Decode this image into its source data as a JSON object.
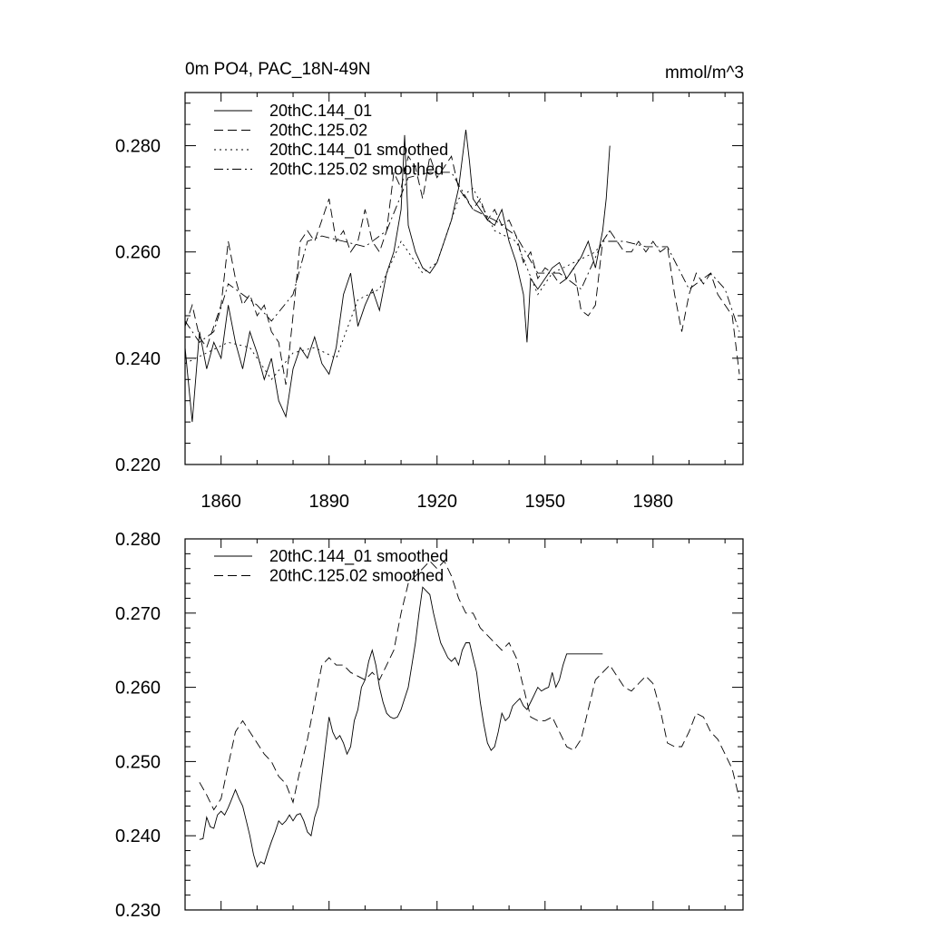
{
  "figure": {
    "title_left": "0m PO4, PAC_18N-49N",
    "title_right": "mmol/m^3"
  },
  "chart_data": [
    {
      "type": "line",
      "xlim": [
        1850,
        2005
      ],
      "ylim": [
        0.22,
        0.29
      ],
      "x_ticks": [
        1860,
        1890,
        1920,
        1950,
        1980
      ],
      "x_tick_labels": [
        "1860",
        "1890",
        "1920",
        "1950",
        "1980"
      ],
      "y_ticks": [
        0.22,
        0.24,
        0.26,
        0.28
      ],
      "y_tick_labels": [
        "0.220",
        "0.240",
        "0.260",
        "0.280"
      ],
      "legend_position": "top-left",
      "series": [
        {
          "name": "20thC.144_01",
          "style": "solid",
          "x": [
            1850,
            1852,
            1854,
            1856,
            1858,
            1860,
            1862,
            1864,
            1866,
            1868,
            1870,
            1872,
            1874,
            1876,
            1878,
            1880,
            1882,
            1884,
            1886,
            1888,
            1890,
            1892,
            1894,
            1896,
            1898,
            1900,
            1902,
            1904,
            1906,
            1908,
            1910,
            1911,
            1912,
            1914,
            1916,
            1918,
            1920,
            1922,
            1924,
            1926,
            1928,
            1929,
            1930,
            1932,
            1934,
            1936,
            1938,
            1940,
            1942,
            1944,
            1945,
            1946,
            1948,
            1950,
            1952,
            1954,
            1956,
            1958,
            1960,
            1962,
            1964,
            1966,
            1967,
            1968
          ],
          "y": [
            0.242,
            0.228,
            0.245,
            0.238,
            0.243,
            0.24,
            0.25,
            0.243,
            0.238,
            0.245,
            0.241,
            0.236,
            0.24,
            0.232,
            0.229,
            0.238,
            0.242,
            0.24,
            0.244,
            0.239,
            0.237,
            0.242,
            0.252,
            0.256,
            0.246,
            0.25,
            0.253,
            0.249,
            0.256,
            0.26,
            0.268,
            0.282,
            0.265,
            0.26,
            0.257,
            0.256,
            0.258,
            0.262,
            0.266,
            0.272,
            0.283,
            0.277,
            0.27,
            0.268,
            0.266,
            0.265,
            0.268,
            0.262,
            0.258,
            0.252,
            0.243,
            0.255,
            0.253,
            0.255,
            0.257,
            0.258,
            0.255,
            0.257,
            0.259,
            0.262,
            0.257,
            0.264,
            0.27,
            0.28
          ]
        },
        {
          "name": "20thC.125.02",
          "style": "dashed",
          "x": [
            1850,
            1852,
            1854,
            1856,
            1858,
            1860,
            1862,
            1864,
            1866,
            1868,
            1870,
            1872,
            1874,
            1876,
            1878,
            1880,
            1882,
            1884,
            1886,
            1888,
            1890,
            1892,
            1894,
            1896,
            1898,
            1900,
            1902,
            1904,
            1906,
            1908,
            1910,
            1912,
            1914,
            1916,
            1918,
            1920,
            1922,
            1924,
            1926,
            1928,
            1930,
            1932,
            1934,
            1936,
            1938,
            1940,
            1942,
            1944,
            1946,
            1948,
            1950,
            1952,
            1954,
            1956,
            1958,
            1960,
            1962,
            1964,
            1966,
            1968,
            1970,
            1972,
            1974,
            1976,
            1978,
            1980,
            1982,
            1984,
            1986,
            1988,
            1990,
            1992,
            1994,
            1996,
            1998,
            2000,
            2002,
            2004
          ],
          "y": [
            0.246,
            0.25,
            0.244,
            0.242,
            0.246,
            0.25,
            0.262,
            0.255,
            0.25,
            0.252,
            0.248,
            0.25,
            0.245,
            0.243,
            0.235,
            0.248,
            0.262,
            0.264,
            0.262,
            0.266,
            0.27,
            0.262,
            0.264,
            0.26,
            0.262,
            0.268,
            0.262,
            0.26,
            0.264,
            0.275,
            0.272,
            0.278,
            0.276,
            0.27,
            0.278,
            0.274,
            0.276,
            0.278,
            0.272,
            0.27,
            0.268,
            0.27,
            0.266,
            0.268,
            0.265,
            0.266,
            0.263,
            0.258,
            0.26,
            0.255,
            0.257,
            0.256,
            0.254,
            0.255,
            0.257,
            0.249,
            0.248,
            0.25,
            0.262,
            0.264,
            0.262,
            0.26,
            0.26,
            0.262,
            0.26,
            0.262,
            0.26,
            0.261,
            0.252,
            0.245,
            0.252,
            0.256,
            0.254,
            0.256,
            0.252,
            0.25,
            0.248,
            0.237
          ]
        },
        {
          "name": "20thC.144_01 smoothed",
          "style": "dotted",
          "x": [
            1850,
            1856,
            1862,
            1868,
            1874,
            1880,
            1886,
            1892,
            1898,
            1904,
            1910,
            1916,
            1920,
            1926,
            1930,
            1936,
            1942,
            1948,
            1952,
            1958,
            1964,
            1968
          ],
          "y": [
            0.239,
            0.241,
            0.243,
            0.242,
            0.236,
            0.241,
            0.242,
            0.24,
            0.251,
            0.253,
            0.262,
            0.256,
            0.258,
            0.27,
            0.272,
            0.264,
            0.262,
            0.252,
            0.256,
            0.258,
            0.26,
            0.264
          ]
        },
        {
          "name": "20thC.125.02 smoothed",
          "style": "dashdot",
          "x": [
            1850,
            1854,
            1858,
            1862,
            1866,
            1870,
            1874,
            1880,
            1884,
            1888,
            1894,
            1900,
            1906,
            1912,
            1918,
            1924,
            1930,
            1936,
            1942,
            1948,
            1954,
            1960,
            1966,
            1972,
            1978,
            1984,
            1990,
            1996,
            2000,
            2004
          ],
          "y": [
            0.247,
            0.243,
            0.245,
            0.254,
            0.252,
            0.25,
            0.247,
            0.252,
            0.262,
            0.263,
            0.262,
            0.261,
            0.264,
            0.274,
            0.275,
            0.275,
            0.268,
            0.266,
            0.263,
            0.256,
            0.256,
            0.253,
            0.262,
            0.262,
            0.261,
            0.261,
            0.253,
            0.256,
            0.253,
            0.245
          ]
        }
      ]
    },
    {
      "type": "line",
      "xlim": [
        1850,
        2005
      ],
      "ylim": [
        0.23,
        0.28
      ],
      "x_ticks": [
        1860,
        1890,
        1920,
        1950,
        1980
      ],
      "x_tick_labels": [],
      "y_ticks": [
        0.23,
        0.24,
        0.25,
        0.26,
        0.27,
        0.28
      ],
      "y_tick_labels": [
        "0.230",
        "0.240",
        "0.250",
        "0.260",
        "0.270",
        "0.280"
      ],
      "legend_position": "top-left",
      "series": [
        {
          "name": "20thC.144_01 smoothed",
          "style": "solid",
          "x": [
            1854,
            1855,
            1856,
            1857,
            1858,
            1859,
            1860,
            1861,
            1862,
            1863,
            1864,
            1865,
            1866,
            1867,
            1868,
            1869,
            1870,
            1871,
            1872,
            1873,
            1874,
            1875,
            1876,
            1877,
            1878,
            1879,
            1880,
            1881,
            1882,
            1883,
            1884,
            1885,
            1886,
            1887,
            1888,
            1889,
            1890,
            1891,
            1892,
            1893,
            1894,
            1895,
            1896,
            1897,
            1898,
            1899,
            1900,
            1901,
            1902,
            1903,
            1904,
            1905,
            1906,
            1907,
            1908,
            1909,
            1910,
            1911,
            1912,
            1913,
            1914,
            1915,
            1916,
            1917,
            1918,
            1919,
            1920,
            1921,
            1922,
            1923,
            1924,
            1925,
            1926,
            1927,
            1928,
            1929,
            1930,
            1931,
            1932,
            1933,
            1934,
            1935,
            1936,
            1937,
            1938,
            1939,
            1940,
            1941,
            1942,
            1943,
            1944,
            1945,
            1946,
            1947,
            1948,
            1949,
            1950,
            1951,
            1952,
            1953,
            1954,
            1955,
            1956,
            1957,
            1958,
            1959,
            1960,
            1961,
            1962,
            1963,
            1964,
            1965,
            1966
          ],
          "y": [
            0.2395,
            0.2396,
            0.2425,
            0.2412,
            0.241,
            0.2428,
            0.2433,
            0.2428,
            0.2438,
            0.245,
            0.2462,
            0.245,
            0.244,
            0.242,
            0.24,
            0.2375,
            0.2358,
            0.2365,
            0.2362,
            0.2378,
            0.2392,
            0.2405,
            0.242,
            0.2415,
            0.242,
            0.2428,
            0.242,
            0.2428,
            0.243,
            0.242,
            0.2405,
            0.24,
            0.2425,
            0.244,
            0.248,
            0.252,
            0.256,
            0.254,
            0.253,
            0.2535,
            0.2525,
            0.251,
            0.252,
            0.2555,
            0.257,
            0.26,
            0.261,
            0.2635,
            0.265,
            0.263,
            0.26,
            0.258,
            0.2565,
            0.256,
            0.2558,
            0.256,
            0.257,
            0.2585,
            0.26,
            0.263,
            0.266,
            0.27,
            0.2735,
            0.273,
            0.2725,
            0.27,
            0.268,
            0.266,
            0.265,
            0.264,
            0.2635,
            0.264,
            0.263,
            0.265,
            0.266,
            0.266,
            0.264,
            0.262,
            0.258,
            0.255,
            0.2525,
            0.2515,
            0.252,
            0.254,
            0.2565,
            0.2555,
            0.256,
            0.2575,
            0.258,
            0.2585,
            0.2575,
            0.257,
            0.258,
            0.259,
            0.26,
            0.2595,
            0.2598,
            0.26,
            0.262,
            0.26,
            0.261,
            0.263,
            0.2645,
            0.2645,
            0.2645,
            0.2645,
            0.2645,
            0.2645,
            0.2645,
            0.2645,
            0.2645,
            0.2645,
            0.2645
          ]
        },
        {
          "name": "20thC.125.02 smoothed",
          "style": "dashed",
          "x": [
            1854,
            1856,
            1858,
            1860,
            1862,
            1864,
            1866,
            1868,
            1870,
            1872,
            1874,
            1876,
            1878,
            1880,
            1882,
            1884,
            1886,
            1888,
            1890,
            1892,
            1894,
            1896,
            1898,
            1900,
            1902,
            1904,
            1906,
            1908,
            1910,
            1912,
            1914,
            1916,
            1918,
            1920,
            1922,
            1924,
            1926,
            1928,
            1930,
            1932,
            1934,
            1936,
            1938,
            1940,
            1942,
            1944,
            1946,
            1948,
            1950,
            1952,
            1954,
            1956,
            1958,
            1960,
            1962,
            1964,
            1966,
            1968,
            1970,
            1972,
            1974,
            1976,
            1978,
            1980,
            1982,
            1984,
            1986,
            1988,
            1990,
            1992,
            1994,
            1996,
            1998,
            2000,
            2002,
            2004
          ],
          "y": [
            0.2472,
            0.2455,
            0.2435,
            0.245,
            0.2495,
            0.254,
            0.2555,
            0.254,
            0.2525,
            0.251,
            0.25,
            0.248,
            0.247,
            0.2445,
            0.249,
            0.253,
            0.258,
            0.263,
            0.264,
            0.263,
            0.263,
            0.262,
            0.2615,
            0.261,
            0.262,
            0.261,
            0.263,
            0.265,
            0.27,
            0.274,
            0.275,
            0.276,
            0.277,
            0.276,
            0.277,
            0.275,
            0.272,
            0.27,
            0.27,
            0.268,
            0.267,
            0.266,
            0.265,
            0.266,
            0.264,
            0.26,
            0.256,
            0.2555,
            0.2555,
            0.256,
            0.254,
            0.252,
            0.2515,
            0.253,
            0.257,
            0.261,
            0.262,
            0.263,
            0.2615,
            0.26,
            0.2595,
            0.2605,
            0.2615,
            0.2605,
            0.257,
            0.2525,
            0.252,
            0.252,
            0.254,
            0.2565,
            0.256,
            0.254,
            0.253,
            0.251,
            0.249,
            0.245
          ]
        }
      ]
    }
  ]
}
